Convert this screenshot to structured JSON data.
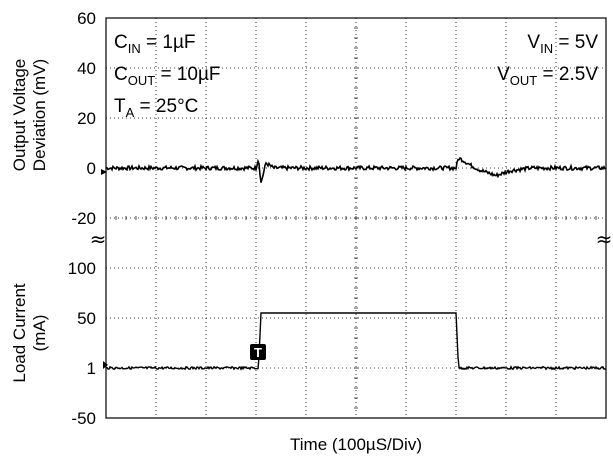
{
  "chart_data": {
    "type": "line",
    "xlabel": "Time (100µS/Div)",
    "x_divisions": 10,
    "y_divisions": 8,
    "grid": true,
    "panels": [
      {
        "name": "voltage",
        "ylabel_line1": "Output Voltage",
        "ylabel_line2": "Deviation (mV)",
        "ticks": [
          "60",
          "40",
          "20",
          "0",
          "-20"
        ],
        "tick_values": [
          60,
          40,
          20,
          0,
          -20
        ],
        "ylim": [
          -20,
          60
        ],
        "series": [
          {
            "x": [
              0,
              3.0,
              3.05,
              3.1,
              3.2,
              3.35,
              3.6,
              4.0,
              7.0,
              7.05,
              7.15,
              7.3,
              7.5,
              7.8,
              8.1,
              8.5,
              10
            ],
            "y": [
              0,
              0,
              4,
              -6,
              2,
              0,
              0,
              0,
              0,
              4,
              3,
              1,
              -1,
              -3,
              -1,
              0,
              0
            ]
          }
        ]
      },
      {
        "name": "current",
        "ylabel_line1": "Load Current",
        "ylabel_line2": "(mA)",
        "ticks": [
          "100",
          "50",
          "1",
          "-50"
        ],
        "tick_values": [
          100,
          50,
          1,
          -50
        ],
        "ylim": [
          -50,
          100
        ],
        "series": [
          {
            "x": [
              0,
              3.05,
              3.1,
              7.0,
              7.05,
              10
            ],
            "y": [
              1,
              1,
              55,
              55,
              1,
              1
            ]
          }
        ]
      }
    ],
    "annotations_left": [
      {
        "base": "C",
        "sub": "IN",
        "rest": " = 1µF"
      },
      {
        "base": "C",
        "sub": "OUT",
        "rest": " = 10µF"
      },
      {
        "base": "T",
        "sub": "A",
        "rest": " = 25°C"
      }
    ],
    "annotations_right": [
      {
        "base": "V",
        "sub": "IN",
        "rest": " = 5V"
      },
      {
        "base": "V",
        "sub": "OUT",
        "rest": " = 2.5V"
      }
    ],
    "trigger_marker": "T"
  }
}
